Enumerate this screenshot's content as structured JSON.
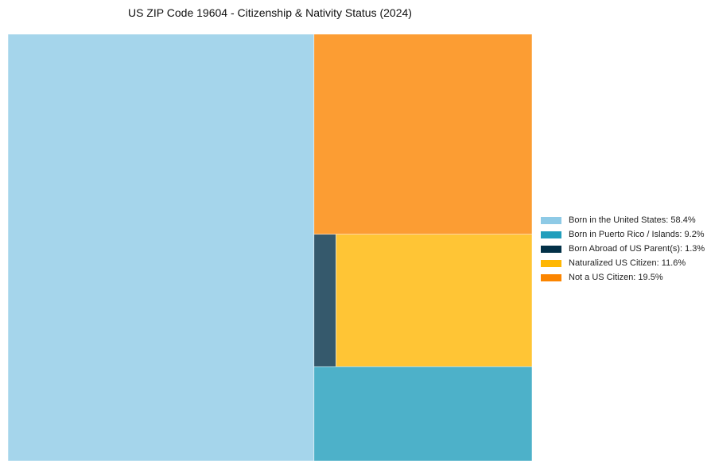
{
  "chart_data": {
    "type": "treemap",
    "title": "US ZIP Code 19604 - Citizenship & Nativity Status (2024)",
    "unit": "%",
    "series": [
      {
        "name": "Born in the United States",
        "value": 58.4,
        "color": "#8ecae6",
        "legend": "Born in the United States: 58.4%"
      },
      {
        "name": "Born in Puerto Rico / Islands",
        "value": 9.2,
        "color": "#219ebc",
        "legend": "Born in Puerto Rico / Islands: 9.2%"
      },
      {
        "name": "Born Abroad of US Parent(s)",
        "value": 1.3,
        "color": "#023047",
        "legend": "Born Abroad of US Parent(s): 1.3%"
      },
      {
        "name": "Naturalized US Citizen",
        "value": 11.6,
        "color": "#ffb703",
        "legend": "Naturalized US Citizen: 11.6%"
      },
      {
        "name": "Not a US Citizen",
        "value": 19.5,
        "color": "#fb8500",
        "legend": "Not a US Citizen: 19.5%"
      }
    ],
    "legend_position": "right"
  }
}
